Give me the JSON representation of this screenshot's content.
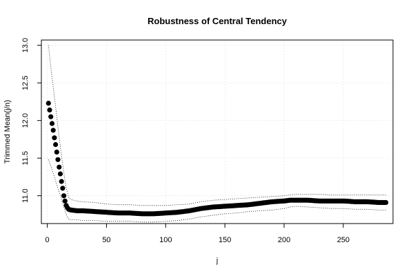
{
  "chart_data": {
    "type": "scatter",
    "title": "Robustness of Central Tendency",
    "xlabel": "j",
    "ylabel": "Trimmed Mean(j/n)",
    "xlim": [
      -5,
      292
    ],
    "ylim": [
      10.63,
      13.07
    ],
    "x_ticks": [
      0,
      50,
      100,
      150,
      200,
      250
    ],
    "y_ticks": [
      11.0,
      11.5,
      12.0,
      12.5,
      13.0
    ],
    "x_tick_labels": [
      "0",
      "50",
      "100",
      "150",
      "200",
      "250"
    ],
    "y_tick_labels": [
      "11.0",
      "11.5",
      "12.0",
      "12.5",
      "13.0"
    ],
    "grid": true,
    "legend": "none",
    "series": [
      {
        "role": "trimmed-mean",
        "style": "points",
        "x": [
          1,
          2,
          3,
          4,
          5,
          6,
          7,
          8,
          9,
          10,
          11,
          12,
          13,
          14,
          15,
          16,
          17,
          18,
          20,
          25,
          30,
          40,
          50,
          60,
          70,
          80,
          85,
          90,
          100,
          110,
          120,
          130,
          140,
          150,
          160,
          170,
          180,
          190,
          200,
          205,
          210,
          220,
          230,
          240,
          250,
          260,
          270,
          280,
          286
        ],
        "y": [
          12.23,
          12.14,
          12.05,
          11.96,
          11.87,
          11.77,
          11.68,
          11.58,
          11.48,
          11.38,
          11.29,
          11.19,
          11.1,
          11.0,
          10.93,
          10.87,
          10.84,
          10.82,
          10.81,
          10.8,
          10.8,
          10.79,
          10.78,
          10.77,
          10.77,
          10.76,
          10.76,
          10.76,
          10.77,
          10.78,
          10.8,
          10.83,
          10.85,
          10.86,
          10.87,
          10.88,
          10.9,
          10.92,
          10.93,
          10.94,
          10.94,
          10.94,
          10.93,
          10.93,
          10.93,
          10.92,
          10.92,
          10.91,
          10.91
        ]
      },
      {
        "role": "upper-band",
        "style": "dotted",
        "x": [
          1,
          3,
          5,
          8,
          11,
          14,
          16,
          18,
          20,
          25,
          30,
          40,
          50,
          60,
          70,
          80,
          90,
          100,
          110,
          120,
          130,
          140,
          150,
          160,
          170,
          180,
          190,
          200,
          205,
          210,
          220,
          230,
          240,
          250,
          260,
          270,
          280,
          286
        ],
        "y": [
          13.0,
          12.7,
          12.45,
          12.05,
          11.65,
          11.3,
          11.1,
          10.98,
          10.95,
          10.93,
          10.92,
          10.91,
          10.89,
          10.88,
          10.88,
          10.87,
          10.87,
          10.87,
          10.88,
          10.89,
          10.92,
          10.94,
          10.95,
          10.96,
          10.97,
          10.98,
          10.99,
          11.0,
          11.01,
          11.02,
          11.02,
          11.02,
          11.01,
          11.01,
          11.01,
          11.01,
          11.01,
          11.01
        ]
      },
      {
        "role": "lower-band",
        "style": "dotted",
        "x": [
          1,
          3,
          5,
          8,
          11,
          14,
          16,
          18,
          20,
          25,
          30,
          40,
          50,
          60,
          70,
          80,
          90,
          100,
          110,
          120,
          130,
          140,
          150,
          160,
          170,
          180,
          190,
          200,
          205,
          210,
          220,
          230,
          240,
          250,
          260,
          270,
          280,
          286
        ],
        "y": [
          11.48,
          11.4,
          11.3,
          11.15,
          11.0,
          10.85,
          10.75,
          10.69,
          10.68,
          10.68,
          10.67,
          10.67,
          10.66,
          10.66,
          10.66,
          10.65,
          10.65,
          10.66,
          10.67,
          10.69,
          10.72,
          10.74,
          10.76,
          10.77,
          10.79,
          10.8,
          10.81,
          10.83,
          10.85,
          10.86,
          10.85,
          10.84,
          10.83,
          10.83,
          10.82,
          10.82,
          10.81,
          10.81
        ]
      }
    ]
  }
}
